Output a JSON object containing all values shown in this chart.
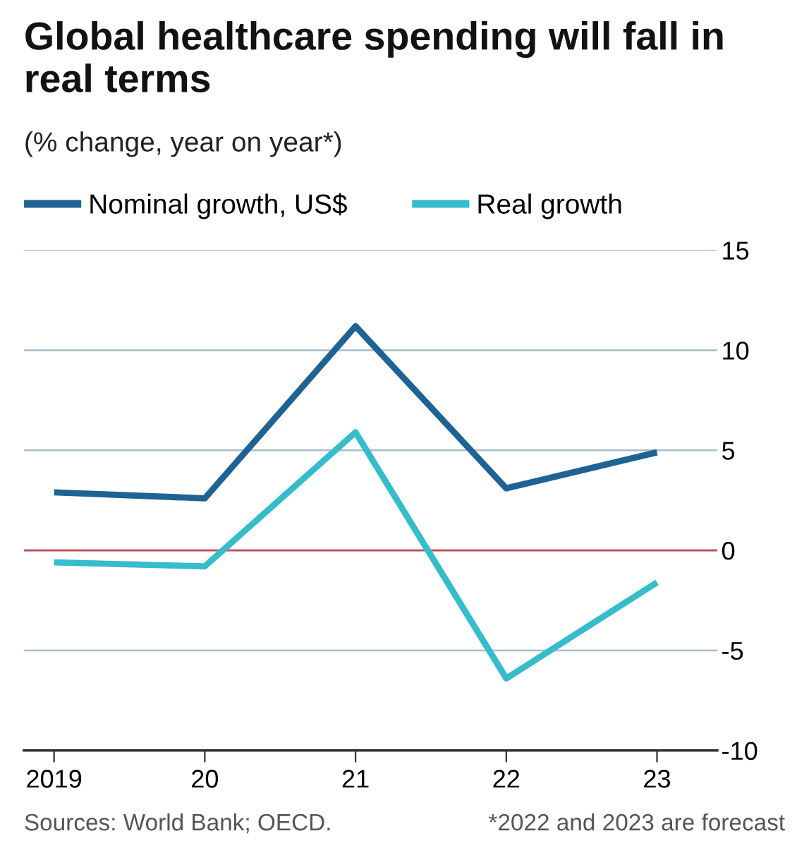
{
  "chart_data": {
    "type": "line",
    "title": "Global healthcare spending will fall in real terms",
    "subtitle": "(% change, year on year*)",
    "x": [
      2019,
      2020,
      2021,
      2022,
      2023
    ],
    "series": [
      {
        "name": "Nominal growth, US$",
        "color": "#1f6394",
        "values": [
          2.9,
          2.6,
          11.2,
          3.1,
          4.9
        ]
      },
      {
        "name": "Real growth",
        "color": "#36bccb",
        "values": [
          -0.6,
          -0.8,
          5.9,
          -6.4,
          -1.6
        ]
      }
    ],
    "xlim": [
      2018.8,
      2023.4
    ],
    "xticks": [
      2019,
      {
        "value": 2020,
        "label": "20"
      },
      {
        "value": 2021,
        "label": "21"
      },
      {
        "value": 2022,
        "label": "22"
      },
      {
        "value": 2023,
        "label": "23"
      }
    ],
    "ylim": [
      -10,
      15
    ],
    "yticks": [
      -10,
      -5,
      0,
      5,
      10,
      15
    ],
    "ref_lines": [
      {
        "axis": "y",
        "value": 0,
        "color": "#c0505a"
      }
    ],
    "grid": "y",
    "legend": "top left",
    "marker": "none",
    "line_style": "solid",
    "annotations": [
      "Sources: World Bank; OECD.",
      "*2022 and 2023 are forecast"
    ]
  }
}
